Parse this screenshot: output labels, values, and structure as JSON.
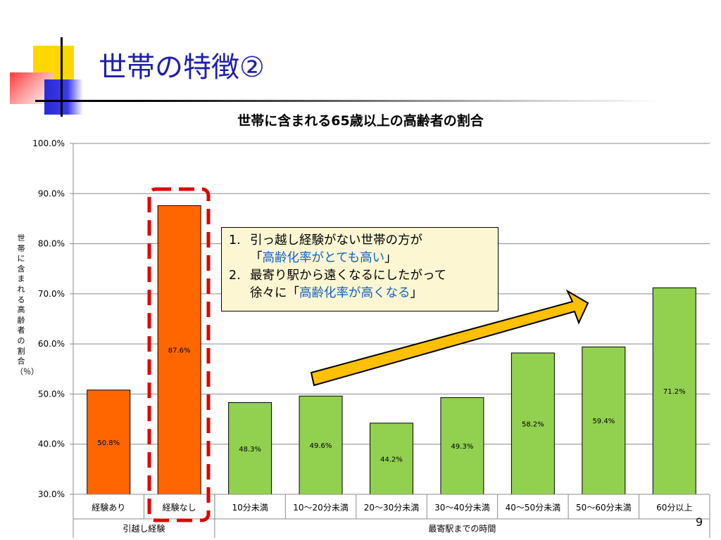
{
  "slide": {
    "title": "世帯の特徴②",
    "page_number": "9",
    "accent_color": "#1f1fa8"
  },
  "callout": {
    "item1_number": "1.",
    "item1_line1": "引っ越し経験がない世帯の方が",
    "item1_line2_prefix": "「",
    "item1_highlight": "高齢化率がとても高い",
    "item1_line2_suffix": "」",
    "item2_number": "2.",
    "item2_line1": "最寄り駅から遠くなるにしたがって",
    "item2_line2_prefix": "徐々に「",
    "item2_highlight": "高齢化率が高くなる",
    "item2_line2_suffix": "」",
    "highlight_color": "#1060c0",
    "background_color": "#fdf6d3"
  },
  "arrow": {
    "fill_color": "#ffc000"
  },
  "highlight_box": {
    "color": "#e00000",
    "style": "dashed"
  },
  "chart_data": {
    "type": "bar",
    "title": "世帯に含まれる65歳以上の高齢者の割合",
    "ylabel": "世帯に含まれる高齢者の割合（％）",
    "xlabel": "",
    "ylim": [
      30,
      100
    ],
    "yticks": [
      "30.0%",
      "40.0%",
      "50.0%",
      "60.0%",
      "70.0%",
      "80.0%",
      "90.0%",
      "100.0%"
    ],
    "grid": true,
    "categories": [
      "経験あり",
      "経験なし",
      "10分未満",
      "10～20分未満",
      "20～30分未満",
      "30～40分未満",
      "40～50分未満",
      "50～60分未満",
      "60分以上"
    ],
    "values": [
      50.8,
      87.6,
      48.3,
      49.6,
      44.2,
      49.3,
      58.2,
      59.4,
      71.2
    ],
    "data_labels": [
      "50.8%",
      "87.6%",
      "48.3%",
      "49.6%",
      "44.2%",
      "49.3%",
      "58.2%",
      "59.4%",
      "71.2%"
    ],
    "bar_colors": [
      "#ff6600",
      "#ff6600",
      "#92d050",
      "#92d050",
      "#92d050",
      "#92d050",
      "#92d050",
      "#92d050",
      "#92d050"
    ],
    "groups": [
      {
        "label": "引越し経験",
        "count": 2
      },
      {
        "label": "最寄駅までの時間",
        "count": 7
      }
    ]
  }
}
